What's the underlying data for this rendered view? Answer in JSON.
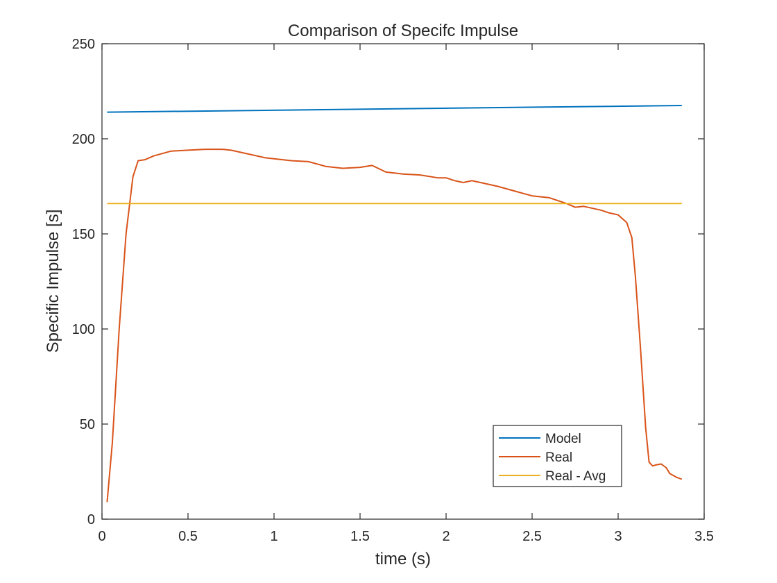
{
  "chart_data": {
    "type": "line",
    "title": "Comparison of Specifc Impulse",
    "xlabel": "time (s)",
    "ylabel": "Specific Impulse [s]",
    "xlim": [
      0,
      3.5
    ],
    "ylim": [
      0,
      250
    ],
    "xticks": [
      0,
      0.5,
      1,
      1.5,
      2,
      2.5,
      3,
      3.5
    ],
    "xtick_labels": [
      "0",
      "0.5",
      "1",
      "1.5",
      "2",
      "2.5",
      "3",
      "3.5"
    ],
    "yticks": [
      0,
      50,
      100,
      150,
      200,
      250
    ],
    "ytick_labels": [
      "0",
      "50",
      "100",
      "150",
      "200",
      "250"
    ],
    "grid": false,
    "legend": "bottom-right",
    "series": [
      {
        "name": "Model",
        "color": "#0072BD",
        "x": [
          0.03,
          3.37
        ],
        "y": [
          214,
          217.5
        ]
      },
      {
        "name": "Real",
        "color": "#D95319",
        "x": [
          0.03,
          0.06,
          0.1,
          0.14,
          0.18,
          0.21,
          0.25,
          0.3,
          0.4,
          0.5,
          0.6,
          0.7,
          0.75,
          0.85,
          0.95,
          1.0,
          1.1,
          1.2,
          1.3,
          1.4,
          1.5,
          1.57,
          1.65,
          1.75,
          1.85,
          1.95,
          2.0,
          2.05,
          2.1,
          2.15,
          2.2,
          2.3,
          2.4,
          2.5,
          2.6,
          2.7,
          2.75,
          2.8,
          2.9,
          2.95,
          3.0,
          3.05,
          3.08,
          3.1,
          3.13,
          3.16,
          3.18,
          3.2,
          3.22,
          3.25,
          3.28,
          3.3,
          3.34,
          3.37
        ],
        "y": [
          9,
          40,
          100,
          150,
          180,
          188.5,
          189,
          191,
          193.5,
          194,
          194.5,
          194.5,
          194,
          192,
          190,
          189.5,
          188.5,
          188,
          185.5,
          184.5,
          185,
          186,
          182.5,
          181.5,
          181,
          179.5,
          179.5,
          178,
          177,
          178,
          177,
          175,
          172.5,
          170,
          169,
          166,
          164,
          164.5,
          162.5,
          161,
          160,
          156,
          148,
          128,
          90,
          48,
          30,
          28,
          28.5,
          29,
          27,
          24,
          22,
          21
        ]
      },
      {
        "name": "Real - Avg",
        "color": "#EDB120",
        "x": [
          0.03,
          3.37
        ],
        "y": [
          166,
          166
        ]
      }
    ]
  }
}
